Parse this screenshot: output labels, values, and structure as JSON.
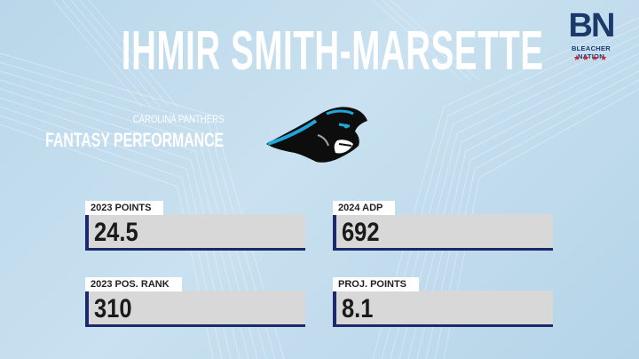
{
  "player": {
    "name": "IHMIR SMITH-MARSETTE"
  },
  "team": {
    "name": "CAROLINA PANTHERS",
    "section_title": "FANTASY PERFORMANCE",
    "logo_icon": "panther-head-icon"
  },
  "brand": {
    "letters": "BN",
    "name": "BLEACHER NATION",
    "stars": "★★★★",
    "accent": "#c7252e",
    "color": "#1b3a6b"
  },
  "stats": [
    {
      "label": "2023 POINTS",
      "value": "24.5"
    },
    {
      "label": "2024 ADP",
      "value": "692"
    },
    {
      "label": "2023 POS. RANK",
      "value": "310"
    },
    {
      "label": "PROJ. POINTS",
      "value": "8.1"
    }
  ],
  "colors": {
    "background": "#c3ddee",
    "bar": "#d8d8d8",
    "bar_accent": "#1c2a6b"
  }
}
